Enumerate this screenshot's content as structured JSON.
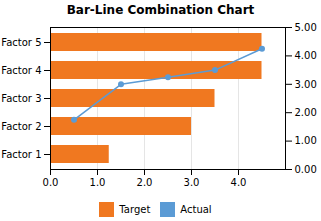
{
  "chart_data": {
    "type": "bar",
    "title": "Bar-Line Combination Chart",
    "orientation": "horizontal",
    "categories": [
      "Factor 1",
      "Factor 2",
      "Factor 3",
      "Factor 4",
      "Factor 5"
    ],
    "series": [
      {
        "name": "Target",
        "type": "bar",
        "color": "#F07820",
        "values": [
          1.25,
          3.0,
          3.5,
          4.5,
          4.5
        ]
      },
      {
        "name": "Actual",
        "type": "line",
        "axis": "y2",
        "color": "#5B9BD5",
        "marker": "o",
        "x": [
          0.5,
          1.5,
          2.5,
          3.5,
          4.5
        ],
        "values": [
          1.75,
          3.0,
          3.25,
          3.5,
          4.25
        ]
      }
    ],
    "xlim": [
      0,
      5
    ],
    "xticks": [
      0,
      1,
      2,
      3,
      4
    ],
    "y2lim": [
      0,
      5
    ],
    "y2ticks": [
      {
        "value": 0,
        "label": "0.00"
      },
      {
        "value": 1,
        "label": "1.00"
      },
      {
        "value": 2,
        "label": "2.00"
      },
      {
        "value": 3,
        "label": "3.00"
      },
      {
        "value": 4,
        "label": "4.00"
      },
      {
        "value": 5,
        "label": "5.00"
      }
    ],
    "grid": "x",
    "legend": "bottom"
  }
}
